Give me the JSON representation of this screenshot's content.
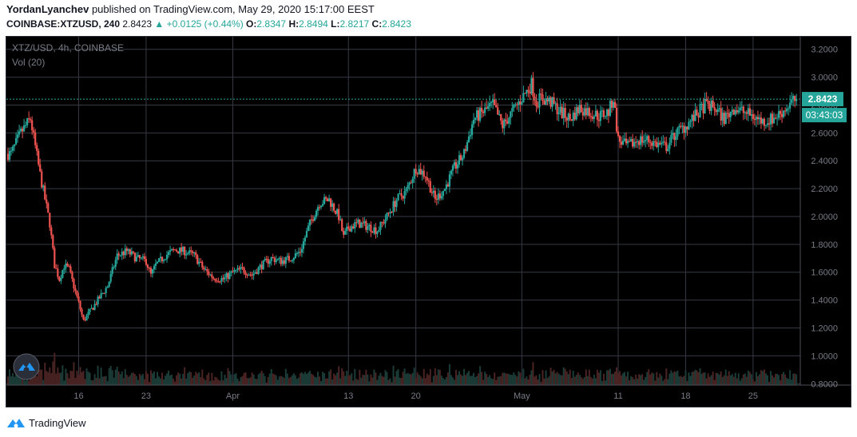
{
  "header": {
    "author": "YordanLyanchev",
    "published_text": "published on TradingView.com, May 29, 2020 15:17:00 EEST",
    "symbol": "COINBASE:XTZUSD, 240",
    "last": "2.8423",
    "change": "▲ +0.0125 (+0.44%)",
    "open_label": "O:",
    "open": "2.8347",
    "high_label": "H:",
    "high": "2.8494",
    "low_label": "L:",
    "low": "2.8217",
    "close_label": "C:",
    "close": "2.8423"
  },
  "footer": {
    "brand": "TradingView"
  },
  "colors": {
    "up": "#26a69a",
    "down": "#ef5350",
    "background": "#000000",
    "grid": "#363a45",
    "axis_text": "#787b86"
  },
  "chart_data": {
    "type": "candlestick",
    "title": "XTZ/USD, 4h, COINBASE",
    "subtitle": "Vol (20)",
    "y_axis": {
      "position": "right",
      "ticks": [
        "3.2000",
        "3.0000",
        "2.8000",
        "2.6000",
        "2.4000",
        "2.2000",
        "2.0000",
        "1.8000",
        "1.6000",
        "1.4000",
        "1.2000",
        "1.0000",
        "0.8000"
      ],
      "range": [
        0.79,
        3.29
      ]
    },
    "x_axis": {
      "ticks": [
        "16",
        "23",
        "Apr",
        "13",
        "20",
        "May",
        "11",
        "18",
        "25"
      ],
      "tick_days": [
        15,
        22,
        31,
        43,
        50,
        61,
        71,
        78,
        85
      ],
      "range_days": [
        7.5,
        89.9
      ]
    },
    "last_price": {
      "label": "2.8423",
      "value": 2.8423,
      "countdown": "03:43:03"
    },
    "series": [
      {
        "approx_closes_by_day": [
          [
            8,
            2.45
          ],
          [
            9,
            2.6
          ],
          [
            10,
            2.7
          ],
          [
            11,
            2.3
          ],
          [
            12,
            1.95
          ],
          [
            12.5,
            1.65
          ],
          [
            13,
            1.55
          ],
          [
            13.5,
            1.65
          ],
          [
            14,
            1.62
          ],
          [
            15,
            1.38
          ],
          [
            15.5,
            1.25
          ],
          [
            16,
            1.3
          ],
          [
            17,
            1.4
          ],
          [
            18,
            1.5
          ],
          [
            19,
            1.72
          ],
          [
            20,
            1.75
          ],
          [
            21,
            1.7
          ],
          [
            22,
            1.68
          ],
          [
            22.5,
            1.58
          ],
          [
            23,
            1.65
          ],
          [
            24,
            1.72
          ],
          [
            25,
            1.76
          ],
          [
            26,
            1.75
          ],
          [
            27,
            1.72
          ],
          [
            28,
            1.62
          ],
          [
            29,
            1.56
          ],
          [
            30,
            1.55
          ],
          [
            31,
            1.6
          ],
          [
            32,
            1.62
          ],
          [
            33,
            1.58
          ],
          [
            34,
            1.65
          ],
          [
            35,
            1.7
          ],
          [
            36,
            1.68
          ],
          [
            37,
            1.7
          ],
          [
            38,
            1.75
          ],
          [
            39,
            1.95
          ],
          [
            40,
            2.1
          ],
          [
            41,
            2.12
          ],
          [
            42,
            2.0
          ],
          [
            42.5,
            1.85
          ],
          [
            43,
            1.92
          ],
          [
            44,
            1.95
          ],
          [
            45,
            1.93
          ],
          [
            46,
            1.9
          ],
          [
            47,
            2.0
          ],
          [
            48,
            2.12
          ],
          [
            49,
            2.18
          ],
          [
            50,
            2.35
          ],
          [
            51,
            2.3
          ],
          [
            52,
            2.12
          ],
          [
            53,
            2.2
          ],
          [
            54,
            2.35
          ],
          [
            55,
            2.45
          ],
          [
            56,
            2.7
          ],
          [
            57,
            2.75
          ],
          [
            58,
            2.8
          ],
          [
            59,
            2.65
          ],
          [
            60,
            2.75
          ],
          [
            61,
            2.85
          ],
          [
            62,
            2.95
          ],
          [
            62.5,
            2.82
          ],
          [
            63,
            2.85
          ],
          [
            64,
            2.82
          ],
          [
            65,
            2.75
          ],
          [
            66,
            2.7
          ],
          [
            67,
            2.78
          ],
          [
            68,
            2.75
          ],
          [
            69,
            2.72
          ],
          [
            70,
            2.75
          ],
          [
            70.5,
            2.85
          ],
          [
            71,
            2.55
          ],
          [
            72,
            2.5
          ],
          [
            73,
            2.55
          ],
          [
            74,
            2.55
          ],
          [
            75,
            2.52
          ],
          [
            76,
            2.5
          ],
          [
            77,
            2.6
          ],
          [
            78,
            2.65
          ],
          [
            79,
            2.72
          ],
          [
            80,
            2.8
          ],
          [
            81,
            2.78
          ],
          [
            82,
            2.7
          ],
          [
            83,
            2.78
          ],
          [
            84,
            2.75
          ],
          [
            85,
            2.72
          ],
          [
            86,
            2.68
          ],
          [
            87,
            2.7
          ],
          [
            88,
            2.75
          ],
          [
            89,
            2.82
          ],
          [
            89.5,
            2.84
          ]
        ]
      }
    ]
  }
}
